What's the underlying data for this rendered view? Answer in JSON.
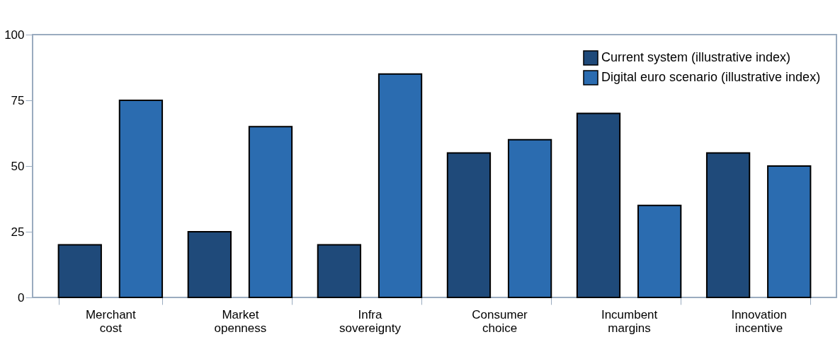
{
  "chart_data": {
    "type": "bar",
    "categories": [
      "Merchant cost",
      "Market openness",
      "Infra sovereignty",
      "Consumer choice",
      "Incumbent margins",
      "Innovation incentive"
    ],
    "series": [
      {
        "name": "Current system (illustrative index)",
        "color": "#1f4a7a",
        "values": [
          20,
          25,
          20,
          55,
          70,
          55
        ]
      },
      {
        "name": "Digital euro scenario (illustrative index)",
        "color": "#2b6cb0",
        "values": [
          75,
          65,
          85,
          60,
          35,
          50
        ]
      }
    ],
    "ylim": [
      0,
      100
    ],
    "yticks": [
      0,
      25,
      50,
      75,
      100
    ],
    "grid": false,
    "legend": "top right"
  }
}
